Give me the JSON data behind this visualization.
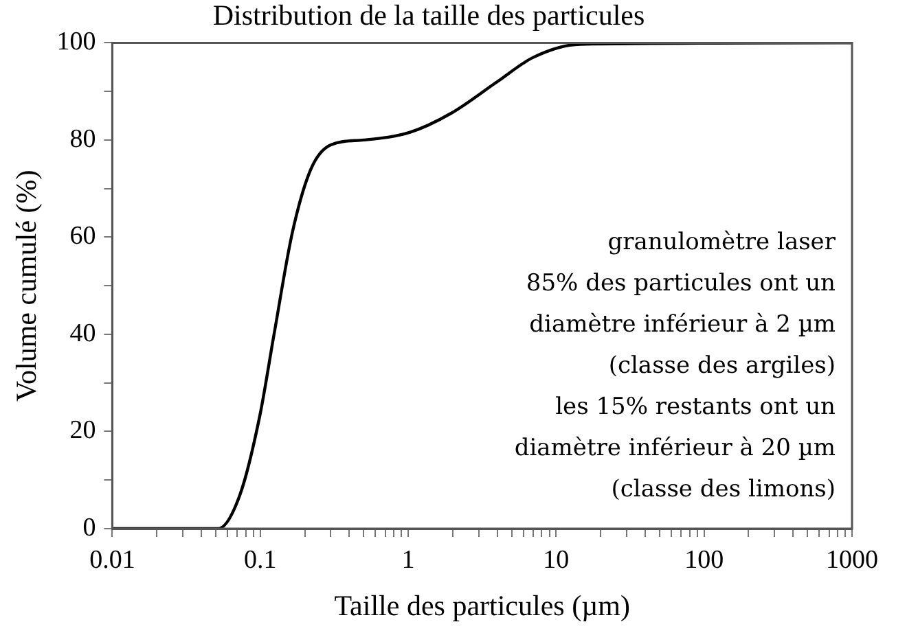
{
  "chart_data": {
    "type": "line",
    "title": "Distribution de la taille des particules",
    "xlabel": "Taille des particules (µm)",
    "ylabel": "Volume cumulé (%)",
    "log": "x",
    "xlim": [
      0.01,
      1000
    ],
    "ylim": [
      0,
      100
    ],
    "xticks": [
      0.01,
      {
        "value": 0.02,
        "label": null
      },
      {
        "value": 0.03,
        "label": null
      },
      {
        "value": 0.04,
        "label": null
      },
      {
        "value": 0.05,
        "label": null
      },
      {
        "value": 0.06,
        "label": null
      },
      {
        "value": 0.07,
        "label": null
      },
      {
        "value": 0.08,
        "label": null
      },
      {
        "value": 0.09,
        "label": null
      },
      0.1,
      {
        "value": 0.2,
        "label": null
      },
      {
        "value": 0.3,
        "label": null
      },
      {
        "value": 0.4,
        "label": null
      },
      {
        "value": 0.5,
        "label": null
      },
      {
        "value": 0.6,
        "label": null
      },
      {
        "value": 0.7,
        "label": null
      },
      {
        "value": 0.8,
        "label": null
      },
      {
        "value": 0.9,
        "label": null
      },
      1,
      {
        "value": 2,
        "label": null
      },
      {
        "value": 3,
        "label": null
      },
      {
        "value": 4,
        "label": null
      },
      {
        "value": 5,
        "label": null
      },
      {
        "value": 6,
        "label": null
      },
      {
        "value": 7,
        "label": null
      },
      {
        "value": 8,
        "label": null
      },
      {
        "value": 9,
        "label": null
      },
      10,
      {
        "value": 20,
        "label": null
      },
      {
        "value": 30,
        "label": null
      },
      {
        "value": 40,
        "label": null
      },
      {
        "value": 50,
        "label": null
      },
      {
        "value": 60,
        "label": null
      },
      {
        "value": 70,
        "label": null
      },
      {
        "value": 80,
        "label": null
      },
      {
        "value": 90,
        "label": null
      },
      100,
      {
        "value": 200,
        "label": null
      },
      {
        "value": 300,
        "label": null
      },
      {
        "value": 400,
        "label": null
      },
      {
        "value": 500,
        "label": null
      },
      {
        "value": 600,
        "label": null
      },
      {
        "value": 700,
        "label": null
      },
      {
        "value": 800,
        "label": null
      },
      {
        "value": 900,
        "label": null
      },
      1000
    ],
    "yticks": [
      0,
      {
        "value": 10,
        "label": null
      },
      20,
      {
        "value": 30,
        "label": null
      },
      40,
      {
        "value": 50,
        "label": null
      },
      60,
      {
        "value": 70,
        "label": null
      },
      80,
      {
        "value": 90,
        "label": null
      },
      100
    ],
    "grid": false,
    "legend": false,
    "marker": "none",
    "line_style": "solid",
    "x": [
      0.01,
      0.052,
      0.073,
      0.099,
      0.124,
      0.165,
      0.22,
      0.3,
      0.5,
      1.03,
      1.95,
      4,
      7,
      14.5,
      1000
    ],
    "series": [
      {
        "color": "#000000",
        "values": [
          0,
          0,
          7,
          23,
          40,
          61,
          74,
          79,
          80,
          81.6,
          85.5,
          92,
          97,
          99.7,
          100
        ]
      }
    ],
    "annotations": [
      "granulomètre laser",
      "85% des particules ont un",
      "diamètre inférieur à 2 µm",
      "(classe des argiles)",
      "les 15% restants ont un",
      "diamètre inférieur à 20 µm",
      "(classe des limons)"
    ]
  }
}
